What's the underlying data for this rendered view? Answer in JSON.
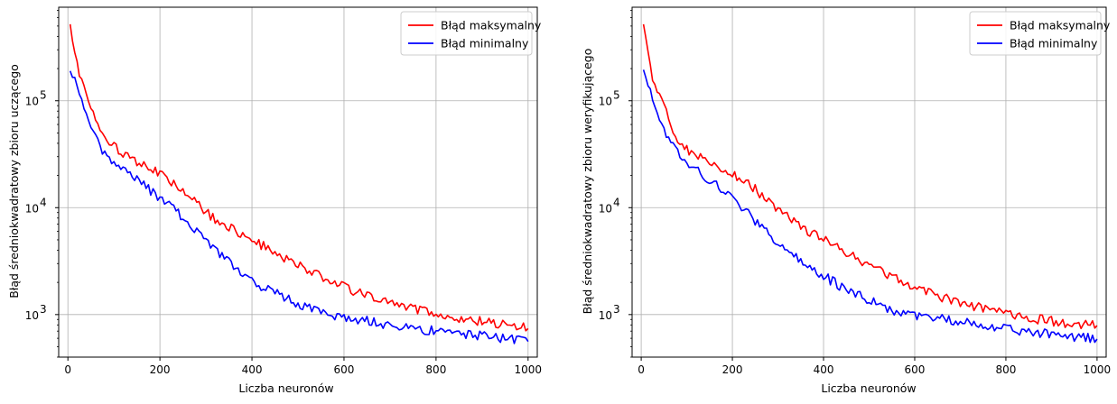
{
  "chart_data": [
    {
      "type": "line",
      "title": "",
      "xlabel": "Liczba neuronów",
      "ylabel": "Błąd średniokwadratowy zbioru uczącego",
      "yscale": "log",
      "xlim": [
        -20,
        1020
      ],
      "ylim": [
        400,
        750000
      ],
      "xticks": [
        0,
        200,
        400,
        600,
        800,
        1000
      ],
      "yticks": [
        {
          "value": 1000,
          "base": "10",
          "exp": "3"
        },
        {
          "value": 10000,
          "base": "10",
          "exp": "4"
        },
        {
          "value": 100000,
          "base": "10",
          "exp": "5"
        }
      ],
      "grid": true,
      "legend": "top-right",
      "series": [
        {
          "name": "Błąd maksymalny",
          "color": "#ff0000",
          "x": [
            5,
            25,
            50,
            75,
            100,
            150,
            200,
            250,
            300,
            350,
            400,
            450,
            500,
            550,
            600,
            650,
            700,
            750,
            800,
            850,
            900,
            950,
            1000
          ],
          "y": [
            520000,
            180000,
            90000,
            50000,
            37000,
            27000,
            21000,
            15000,
            9000,
            6500,
            5000,
            3800,
            2900,
            2300,
            1800,
            1500,
            1300,
            1150,
            1000,
            930,
            860,
            800,
            740
          ]
        },
        {
          "name": "Błąd minimalny",
          "color": "#0000ff",
          "x": [
            5,
            25,
            50,
            75,
            100,
            150,
            200,
            250,
            300,
            350,
            400,
            450,
            500,
            550,
            600,
            650,
            700,
            750,
            800,
            850,
            900,
            950,
            1000
          ],
          "y": [
            190000,
            120000,
            55000,
            35000,
            27000,
            18000,
            12500,
            8000,
            4800,
            3200,
            2000,
            1600,
            1250,
            1050,
            950,
            880,
            800,
            740,
            700,
            660,
            630,
            600,
            560
          ]
        }
      ]
    },
    {
      "type": "line",
      "title": "",
      "xlabel": "Liczba neuronów",
      "ylabel": "Błąd średniokwadratowy zbioru weryfikującego",
      "yscale": "log",
      "xlim": [
        -20,
        1020
      ],
      "ylim": [
        400,
        750000
      ],
      "xticks": [
        0,
        200,
        400,
        600,
        800,
        1000
      ],
      "yticks": [
        {
          "value": 1000,
          "base": "10",
          "exp": "3"
        },
        {
          "value": 10000,
          "base": "10",
          "exp": "4"
        },
        {
          "value": 100000,
          "base": "10",
          "exp": "5"
        }
      ],
      "grid": true,
      "legend": "top-right",
      "series": [
        {
          "name": "Błąd maksymalny",
          "color": "#ff0000",
          "x": [
            5,
            25,
            50,
            75,
            100,
            150,
            200,
            250,
            300,
            350,
            400,
            450,
            500,
            550,
            600,
            650,
            700,
            750,
            800,
            850,
            900,
            950,
            1000
          ],
          "y": [
            520000,
            170000,
            85000,
            48000,
            35000,
            27000,
            21000,
            15000,
            9500,
            6500,
            5000,
            3800,
            2900,
            2300,
            1800,
            1500,
            1300,
            1150,
            1000,
            930,
            870,
            820,
            790
          ]
        },
        {
          "name": "Błąd minimalny",
          "color": "#0000ff",
          "x": [
            5,
            25,
            50,
            75,
            100,
            150,
            200,
            250,
            300,
            350,
            400,
            450,
            500,
            550,
            600,
            650,
            700,
            750,
            800,
            850,
            900,
            950,
            1000
          ],
          "y": [
            195000,
            110000,
            55000,
            35000,
            27000,
            18000,
            12500,
            7500,
            4600,
            3200,
            2300,
            1700,
            1350,
            1100,
            1000,
            920,
            850,
            780,
            730,
            690,
            650,
            620,
            590
          ]
        }
      ]
    }
  ]
}
